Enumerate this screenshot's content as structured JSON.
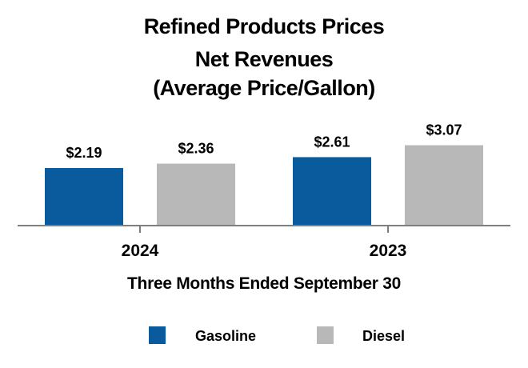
{
  "chart_data": {
    "type": "bar",
    "title": [
      "Refined Products Prices",
      "Net Revenues",
      "(Average Price/Gallon)"
    ],
    "xlabel": "Three Months Ended September 30",
    "ylabel": "",
    "categories": [
      "2024",
      "2023"
    ],
    "ylim": [
      0,
      3.5
    ],
    "series": [
      {
        "name": "Gasoline",
        "color": "#0a5a9e",
        "values": [
          2.19,
          2.61
        ],
        "labels": [
          "$2.19",
          "$2.61"
        ]
      },
      {
        "name": "Diesel",
        "color": "#b8b8b8",
        "values": [
          2.36,
          3.07
        ],
        "labels": [
          "$2.36",
          "$3.07"
        ]
      }
    ],
    "legend": [
      "Gasoline",
      "Diesel"
    ],
    "legend_position": "bottom",
    "grid": false
  }
}
